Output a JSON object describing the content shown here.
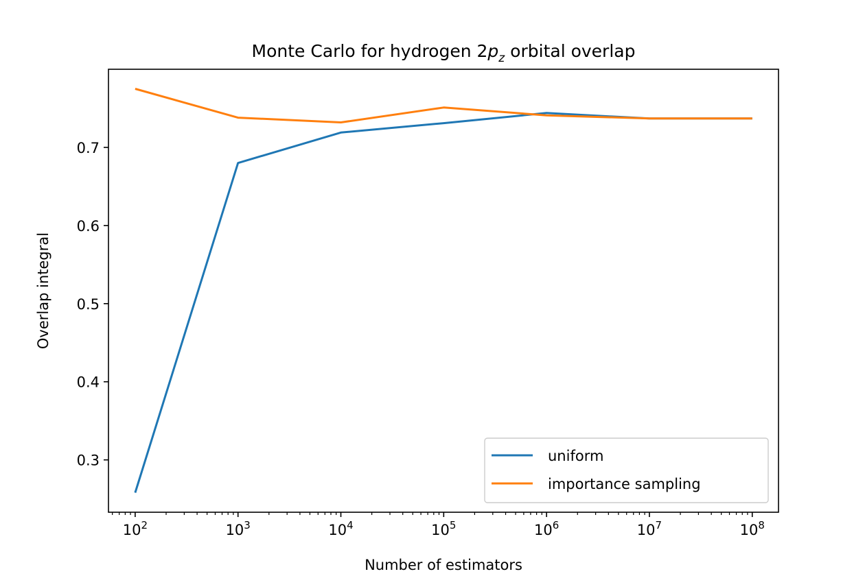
{
  "chart_data": {
    "type": "line",
    "title": "Monte Carlo for hydrogen 2p_z orbital overlap",
    "title_parts": {
      "prefix": "Monte Carlo for hydrogen 2",
      "var": "p",
      "sub": "z",
      "suffix": " orbital overlap"
    },
    "xlabel": "Number of estimators",
    "ylabel": "Overlap integral",
    "x_scale": "log",
    "x": [
      100,
      1000,
      10000,
      100000,
      1000000,
      10000000,
      100000000
    ],
    "x_ticks": [
      {
        "base": "10",
        "exp": "2"
      },
      {
        "base": "10",
        "exp": "3"
      },
      {
        "base": "10",
        "exp": "4"
      },
      {
        "base": "10",
        "exp": "5"
      },
      {
        "base": "10",
        "exp": "6"
      },
      {
        "base": "10",
        "exp": "7"
      },
      {
        "base": "10",
        "exp": "8"
      }
    ],
    "y_ticks": [
      "0.3",
      "0.4",
      "0.5",
      "0.6",
      "0.7"
    ],
    "ylim": [
      0.233,
      0.8
    ],
    "xlim": [
      55,
      180000000
    ],
    "grid": false,
    "legend_position": "lower-right",
    "series": [
      {
        "name": "uniform",
        "color": "#1f77b4",
        "values": [
          0.258,
          0.68,
          0.719,
          0.731,
          0.744,
          0.737,
          0.737
        ]
      },
      {
        "name": "importance sampling",
        "color": "#ff7f0e",
        "values": [
          0.775,
          0.738,
          0.732,
          0.751,
          0.741,
          0.737,
          0.737
        ]
      }
    ]
  }
}
